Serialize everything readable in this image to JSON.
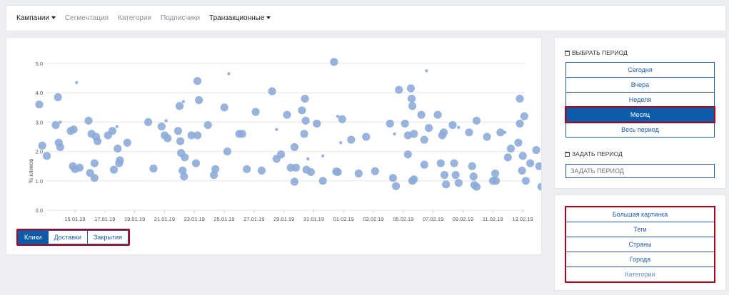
{
  "nav": {
    "items": [
      {
        "label": "Кампании",
        "dropdown": true,
        "dark": true
      },
      {
        "label": "Сегментация",
        "dropdown": false,
        "dark": false
      },
      {
        "label": "Категории",
        "dropdown": false,
        "dark": false
      },
      {
        "label": "Подписчики",
        "dropdown": false,
        "dark": false
      },
      {
        "label": "Транзакционные",
        "dropdown": true,
        "dark": true
      }
    ]
  },
  "chart_data": {
    "type": "scatter",
    "ylabel": "% кликов",
    "ylim": [
      0,
      5
    ],
    "yticks": [
      "0.0",
      "1.0",
      "2.0",
      "3.0",
      "4.0",
      "5.0"
    ],
    "xticks": [
      "15.01.19",
      "17.01.19",
      "19.01.19",
      "21.01.19",
      "23.01.19",
      "25.01.19",
      "27.01.19",
      "29.01.19",
      "31.01.19",
      "01.02.19",
      "03.02.19",
      "05.02.19",
      "07.02.19",
      "09.02.19",
      "11.02.19",
      "13.02.19"
    ],
    "xlim": [
      12.6,
      44.8
    ],
    "point_color": "#8aaad8",
    "points": [
      [
        12.6,
        3.6,
        "m"
      ],
      [
        12.8,
        2.2,
        "m"
      ],
      [
        13.1,
        1.85,
        "m"
      ],
      [
        13.7,
        2.9,
        "m"
      ],
      [
        13.85,
        3.85,
        "m"
      ],
      [
        13.9,
        2.3,
        "m"
      ],
      [
        14.0,
        3.0,
        "s"
      ],
      [
        14.0,
        2.15,
        "m"
      ],
      [
        14.7,
        2.7,
        "m"
      ],
      [
        14.85,
        1.5,
        "m"
      ],
      [
        14.9,
        2.75,
        "m"
      ],
      [
        15.0,
        1.4,
        "m"
      ],
      [
        15.1,
        4.35,
        "s"
      ],
      [
        15.3,
        1.45,
        "m"
      ],
      [
        15.9,
        3.05,
        "m"
      ],
      [
        16.0,
        1.27,
        "m"
      ],
      [
        16.1,
        2.6,
        "m"
      ],
      [
        16.3,
        1.1,
        "m"
      ],
      [
        16.3,
        1.6,
        "m"
      ],
      [
        16.4,
        2.5,
        "m"
      ],
      [
        16.5,
        2.35,
        "m"
      ],
      [
        17.2,
        2.55,
        "m"
      ],
      [
        17.5,
        2.7,
        "m"
      ],
      [
        17.6,
        1.38,
        "m"
      ],
      [
        17.8,
        2.85,
        "s"
      ],
      [
        17.85,
        2.1,
        "m"
      ],
      [
        17.95,
        1.6,
        "m"
      ],
      [
        18.0,
        1.7,
        "m"
      ],
      [
        18.5,
        2.3,
        "m"
      ],
      [
        19.9,
        3.0,
        "m"
      ],
      [
        20.25,
        1.42,
        "m"
      ],
      [
        20.8,
        2.85,
        "m"
      ],
      [
        21.0,
        2.55,
        "m"
      ],
      [
        21.1,
        3.05,
        "s"
      ],
      [
        21.2,
        2.45,
        "m"
      ],
      [
        21.9,
        2.7,
        "m"
      ],
      [
        22.0,
        3.55,
        "m"
      ],
      [
        22.05,
        2.35,
        "m"
      ],
      [
        22.1,
        1.95,
        "m"
      ],
      [
        22.2,
        1.35,
        "m"
      ],
      [
        22.25,
        3.7,
        "s"
      ],
      [
        22.3,
        1.15,
        "m"
      ],
      [
        22.35,
        1.8,
        "m"
      ],
      [
        22.8,
        2.55,
        "m"
      ],
      [
        23.1,
        1.6,
        "m"
      ],
      [
        23.2,
        4.4,
        "m"
      ],
      [
        23.2,
        2.55,
        "m"
      ],
      [
        23.3,
        3.75,
        "m"
      ],
      [
        23.9,
        2.9,
        "m"
      ],
      [
        24.3,
        1.2,
        "m"
      ],
      [
        24.4,
        1.4,
        "m"
      ],
      [
        25.0,
        3.5,
        "m"
      ],
      [
        25.2,
        2.0,
        "m"
      ],
      [
        25.3,
        4.65,
        "s"
      ],
      [
        26.0,
        2.6,
        "m"
      ],
      [
        26.2,
        2.6,
        "m"
      ],
      [
        26.5,
        1.4,
        "m"
      ],
      [
        27.1,
        3.35,
        "m"
      ],
      [
        27.5,
        1.35,
        "m"
      ],
      [
        28.2,
        4.05,
        "m"
      ],
      [
        28.5,
        2.75,
        "s"
      ],
      [
        28.5,
        1.75,
        "m"
      ],
      [
        28.8,
        1.9,
        "m"
      ],
      [
        29.2,
        3.25,
        "m"
      ],
      [
        29.45,
        1.45,
        "m"
      ],
      [
        29.7,
        2.15,
        "m"
      ],
      [
        29.7,
        0.97,
        "m"
      ],
      [
        29.8,
        1.45,
        "m"
      ],
      [
        30.2,
        3.4,
        "m"
      ],
      [
        30.35,
        2.6,
        "m"
      ],
      [
        30.4,
        3.8,
        "m"
      ],
      [
        30.45,
        3.05,
        "m"
      ],
      [
        30.5,
        1.38,
        "m"
      ],
      [
        30.6,
        1.75,
        "s"
      ],
      [
        30.8,
        1.3,
        "m"
      ],
      [
        31.2,
        2.95,
        "m"
      ],
      [
        31.6,
        1.0,
        "m"
      ],
      [
        31.6,
        1.85,
        "s"
      ],
      [
        32.35,
        5.05,
        "m"
      ],
      [
        32.5,
        1.32,
        "m"
      ],
      [
        32.6,
        3.2,
        "s"
      ],
      [
        32.6,
        1.3,
        "m"
      ],
      [
        32.8,
        2.3,
        "s"
      ],
      [
        32.9,
        3.1,
        "m"
      ],
      [
        33.5,
        2.4,
        "m"
      ],
      [
        34.0,
        1.25,
        "m"
      ],
      [
        34.5,
        2.5,
        "m"
      ],
      [
        35.1,
        1.33,
        "m"
      ],
      [
        36.1,
        2.95,
        "m"
      ],
      [
        36.3,
        1.1,
        "m"
      ],
      [
        36.4,
        2.6,
        "s"
      ],
      [
        36.5,
        0.82,
        "m"
      ],
      [
        36.7,
        4.1,
        "m"
      ],
      [
        37.1,
        2.95,
        "m"
      ],
      [
        37.3,
        1.9,
        "m"
      ],
      [
        37.3,
        2.55,
        "m"
      ],
      [
        37.5,
        4.15,
        "m"
      ],
      [
        37.55,
        3.8,
        "m"
      ],
      [
        37.6,
        1.0,
        "m"
      ],
      [
        37.6,
        3.55,
        "m"
      ],
      [
        37.7,
        1.05,
        "m"
      ],
      [
        37.7,
        2.6,
        "m"
      ],
      [
        38.2,
        3.25,
        "m"
      ],
      [
        38.4,
        2.4,
        "m"
      ],
      [
        38.4,
        1.55,
        "m"
      ],
      [
        38.55,
        4.75,
        "s"
      ],
      [
        38.7,
        2.8,
        "m"
      ],
      [
        39.3,
        3.25,
        "m"
      ],
      [
        39.5,
        1.6,
        "m"
      ],
      [
        39.6,
        2.55,
        "m"
      ],
      [
        39.7,
        2.65,
        "m"
      ],
      [
        39.75,
        1.2,
        "m"
      ],
      [
        39.85,
        0.88,
        "m"
      ],
      [
        40.3,
        2.9,
        "m"
      ],
      [
        40.4,
        1.6,
        "m"
      ],
      [
        40.5,
        1.2,
        "m"
      ],
      [
        40.7,
        2.82,
        "s"
      ],
      [
        40.7,
        0.93,
        "m"
      ],
      [
        41.4,
        2.65,
        "m"
      ],
      [
        41.6,
        1.5,
        "m"
      ],
      [
        41.7,
        1.15,
        "m"
      ],
      [
        41.75,
        0.86,
        "m"
      ],
      [
        41.9,
        3.05,
        "m"
      ],
      [
        41.9,
        0.8,
        "m"
      ],
      [
        42.6,
        2.5,
        "m"
      ],
      [
        43.0,
        1.0,
        "m"
      ],
      [
        43.15,
        1.25,
        "m"
      ],
      [
        43.2,
        1.0,
        "m"
      ],
      [
        43.5,
        2.65,
        "m"
      ],
      [
        43.8,
        2.65,
        "s"
      ],
      [
        44.0,
        1.8,
        "m"
      ],
      [
        44.2,
        2.1,
        "m"
      ],
      [
        44.7,
        2.3,
        "m"
      ],
      [
        44.8,
        3.8,
        "m"
      ],
      [
        44.8,
        2.95,
        "m"
      ],
      [
        44.95,
        1.35,
        "m"
      ],
      [
        45.0,
        1.85,
        "m"
      ],
      [
        45.1,
        3.2,
        "m"
      ],
      [
        45.2,
        1.0,
        "m"
      ],
      [
        45.5,
        1.6,
        "m"
      ],
      [
        45.9,
        2.05,
        "m"
      ],
      [
        46.1,
        1.5,
        "m"
      ],
      [
        46.25,
        0.8,
        "m"
      ]
    ]
  },
  "metric_tabs": [
    {
      "label": "Клики",
      "active": true
    },
    {
      "label": "Доставки",
      "active": false
    },
    {
      "label": "Закрытия",
      "active": false
    }
  ],
  "period": {
    "title": "ВЫБРАТЬ ПЕРИОД",
    "options": [
      {
        "label": "Сегодня",
        "active": false
      },
      {
        "label": "Вчера",
        "active": false
      },
      {
        "label": "Неделя",
        "active": false
      },
      {
        "label": "Месяц",
        "active": true
      },
      {
        "label": "Весь период",
        "active": false
      }
    ],
    "custom_title": "ЗАДАТЬ ПЕРИОД",
    "custom_placeholder": "ЗАДАТЬ ПЕРИОД"
  },
  "links": [
    {
      "label": "Большая картинка"
    },
    {
      "label": "Теги"
    },
    {
      "label": "Страны"
    },
    {
      "label": "Города"
    },
    {
      "label": "Категории"
    }
  ]
}
